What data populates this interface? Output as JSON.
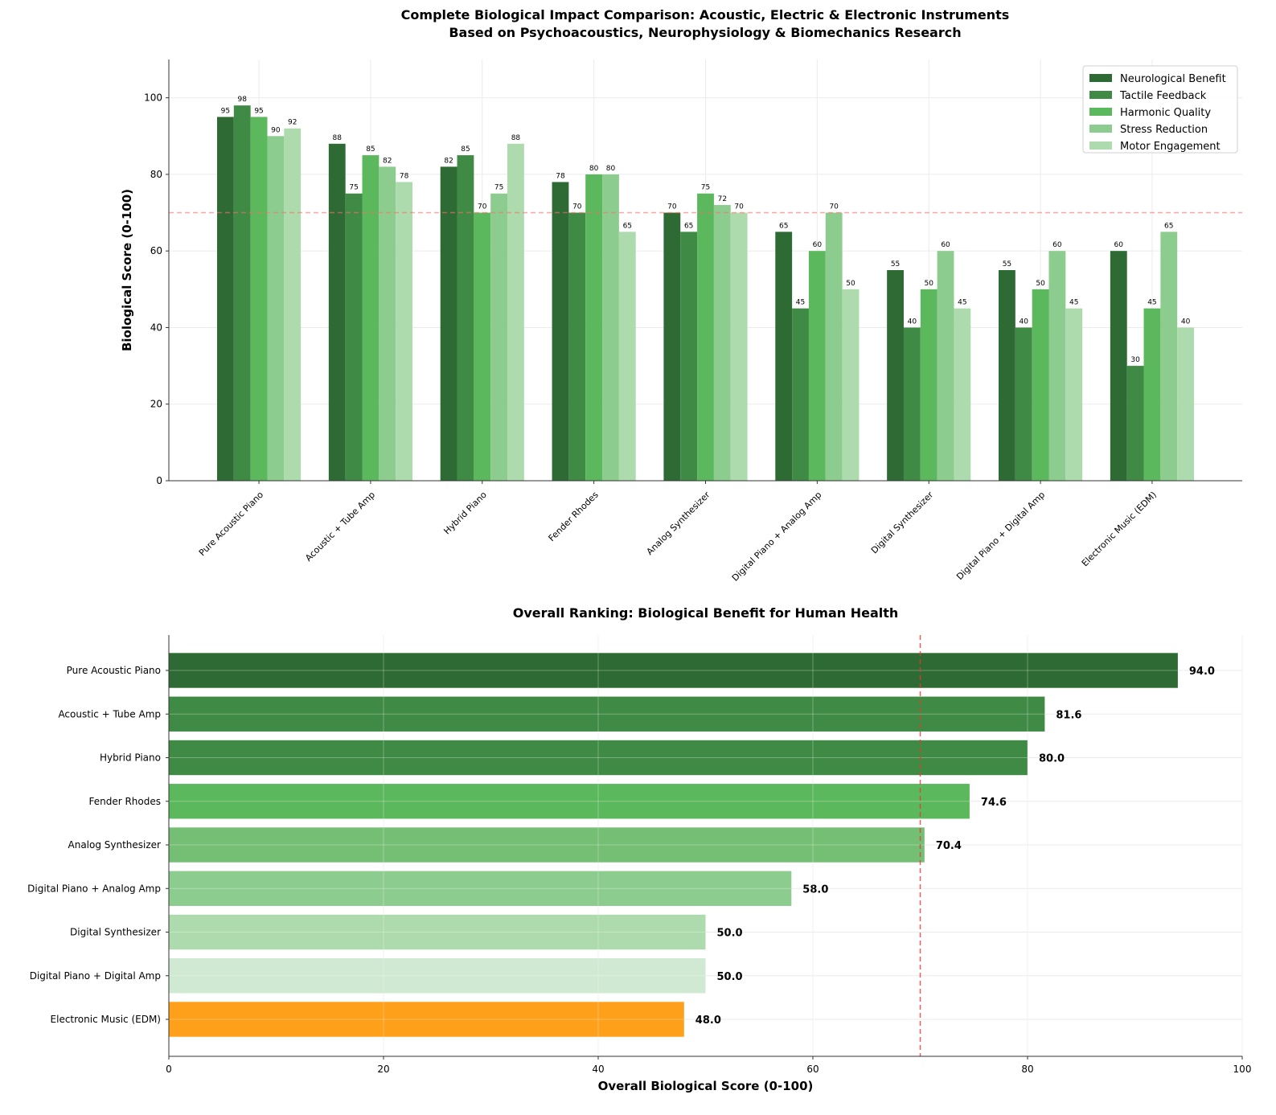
{
  "chart_data": [
    {
      "type": "bar",
      "title": "Complete Biological Impact Comparison: Acoustic, Electric & Electronic Instruments\nBased on Psychoacoustics, Neurophysiology & Biomechanics Research",
      "title_lines": [
        "Complete Biological Impact Comparison: Acoustic, Electric & Electronic Instruments",
        "Based on Psychoacoustics, Neurophysiology & Biomechanics Research"
      ],
      "xlabel": "",
      "ylabel": "Biological Score (0-100)",
      "ylim": [
        0,
        110
      ],
      "yticks": [
        0,
        20,
        40,
        60,
        80,
        100
      ],
      "grid": true,
      "legend_position": "top-right",
      "reference_line": 70,
      "categories": [
        "Pure Acoustic Piano",
        "Acoustic + Tube Amp",
        "Hybrid Piano",
        "Fender Rhodes",
        "Analog Synthesizer",
        "Digital Piano + Analog Amp",
        "Digital Synthesizer",
        "Digital Piano + Digital Amp",
        "Electronic Music (EDM)"
      ],
      "series": [
        {
          "name": "Neurological Benefit",
          "color": "#2e6b34",
          "values": [
            95,
            88,
            82,
            78,
            70,
            65,
            55,
            55,
            60
          ]
        },
        {
          "name": "Tactile Feedback",
          "color": "#3f8a45",
          "values": [
            98,
            75,
            85,
            70,
            65,
            45,
            40,
            40,
            30
          ]
        },
        {
          "name": "Harmonic Quality",
          "color": "#5cb85c",
          "values": [
            95,
            85,
            70,
            80,
            75,
            60,
            50,
            50,
            45
          ]
        },
        {
          "name": "Stress Reduction",
          "color": "#8ccd8f",
          "values": [
            90,
            82,
            75,
            80,
            72,
            70,
            60,
            60,
            65
          ]
        },
        {
          "name": "Motor Engagement",
          "color": "#addbad",
          "values": [
            92,
            78,
            88,
            65,
            70,
            50,
            45,
            45,
            40
          ]
        }
      ]
    },
    {
      "type": "bar",
      "orientation": "horizontal",
      "title": "Overall Ranking: Biological Benefit for Human Health",
      "xlabel": "Overall Biological Score (0-100)",
      "ylabel": "",
      "xlim": [
        0,
        100
      ],
      "xticks": [
        0,
        20,
        40,
        60,
        80,
        100
      ],
      "grid": true,
      "reference_line": 70,
      "categories": [
        "Pure Acoustic Piano",
        "Acoustic + Tube Amp",
        "Hybrid Piano",
        "Fender Rhodes",
        "Analog Synthesizer",
        "Digital Piano + Analog Amp",
        "Digital Synthesizer",
        "Digital Piano + Digital Amp",
        "Electronic Music (EDM)"
      ],
      "values": [
        94.0,
        81.6,
        80.0,
        74.6,
        70.4,
        58.0,
        50.0,
        50.0,
        48.0
      ],
      "labels": [
        "94.0",
        "81.6",
        "80.0",
        "74.6",
        "70.4",
        "58.0",
        "50.0",
        "50.0",
        "48.0"
      ],
      "colors": [
        "#2e6b34",
        "#3f8a45",
        "#3f8a45",
        "#5cb85c",
        "#75bf75",
        "#8ccd8f",
        "#addbad",
        "#d0e9d2",
        "#ffa01a"
      ]
    }
  ]
}
